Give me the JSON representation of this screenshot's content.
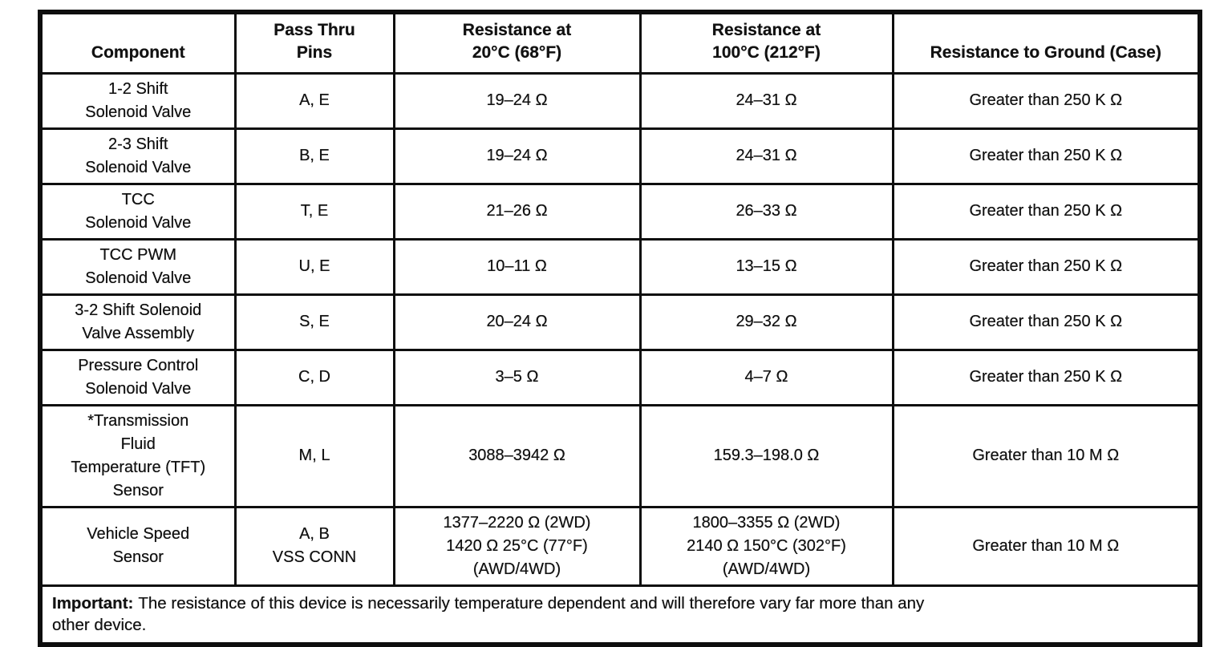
{
  "page": {
    "background_color": "#ffffff",
    "ink_color": "#121212",
    "border_color": "#0e0e0e"
  },
  "table": {
    "columns": [
      {
        "label": "Component"
      },
      {
        "label": "Pass Thru\nPins"
      },
      {
        "label": "Resistance at\n20°C (68°F)"
      },
      {
        "label": "Resistance at\n100°C (212°F)"
      },
      {
        "label": "Resistance to Ground (Case)"
      }
    ],
    "rows": [
      {
        "component": "1-2 Shift\nSolenoid Valve",
        "pins": "A, E",
        "r20": "19–24 Ω",
        "r100": "24–31 Ω",
        "ground": "Greater than 250 K Ω"
      },
      {
        "component": "2-3 Shift\nSolenoid Valve",
        "pins": "B, E",
        "r20": "19–24 Ω",
        "r100": "24–31 Ω",
        "ground": "Greater than 250 K Ω"
      },
      {
        "component": "TCC\nSolenoid Valve",
        "pins": "T, E",
        "r20": "21–26 Ω",
        "r100": "26–33 Ω",
        "ground": "Greater than 250 K Ω"
      },
      {
        "component": "TCC PWM\nSolenoid Valve",
        "pins": "U, E",
        "r20": "10–11 Ω",
        "r100": "13–15 Ω",
        "ground": "Greater than 250 K Ω"
      },
      {
        "component": "3-2 Shift Solenoid\nValve Assembly",
        "pins": "S, E",
        "r20": "20–24 Ω",
        "r100": "29–32 Ω",
        "ground": "Greater than 250 K Ω"
      },
      {
        "component": "Pressure Control\nSolenoid Valve",
        "pins": "C, D",
        "r20": "3–5 Ω",
        "r100": "4–7 Ω",
        "ground": "Greater than 250 K Ω"
      },
      {
        "component": "*Transmission\nFluid\nTemperature (TFT)\nSensor",
        "pins": "M, L",
        "r20": "3088–3942 Ω",
        "r100": "159.3–198.0 Ω",
        "ground": "Greater than 10 M Ω"
      },
      {
        "component": "Vehicle Speed\nSensor",
        "pins": "A, B\nVSS CONN",
        "r20": "1377–2220 Ω (2WD)\n1420 Ω 25°C (77°F)\n(AWD/4WD)",
        "r100": "1800–3355 Ω (2WD)\n2140 Ω 150°C (302°F)\n(AWD/4WD)",
        "ground": "Greater than 10 M Ω"
      }
    ],
    "note": {
      "label": "Important:",
      "text": "The resistance of this device is necessarily temperature dependent and will therefore vary far more than any\nother device."
    }
  }
}
